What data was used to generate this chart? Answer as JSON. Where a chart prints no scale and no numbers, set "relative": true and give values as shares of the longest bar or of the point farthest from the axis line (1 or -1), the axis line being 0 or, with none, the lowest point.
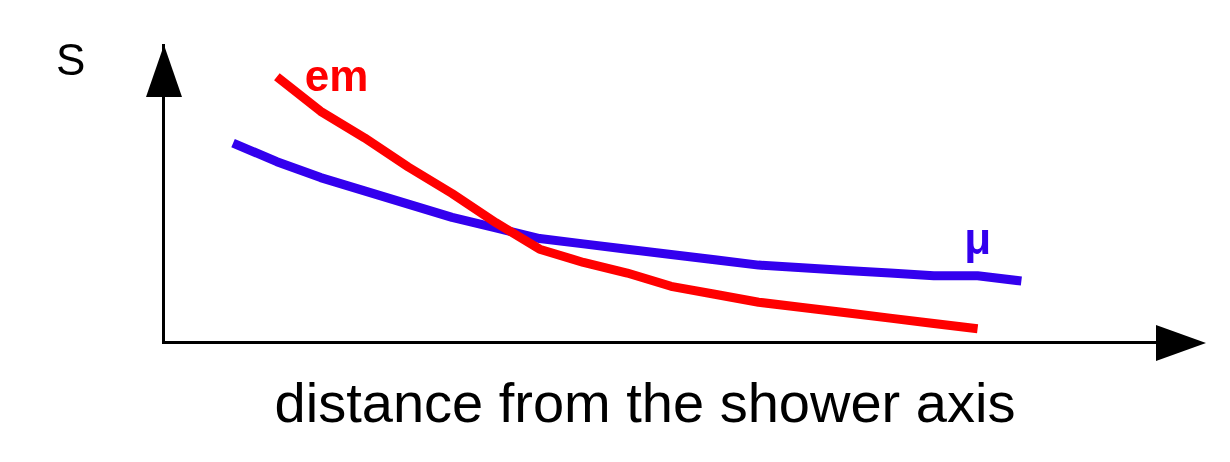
{
  "chart_data": {
    "type": "line",
    "relative": true,
    "xlabel": "distance from the shower axis",
    "ylabel": "S",
    "tick_labels": false,
    "grid": false,
    "marker": "none",
    "line_style": "solid",
    "categories": [
      null,
      null,
      null,
      null,
      null,
      null,
      null,
      null,
      null,
      null,
      null,
      null,
      null,
      null,
      null,
      null,
      null,
      null,
      null
    ],
    "series": [
      {
        "name": "em",
        "color": "#ff0000",
        "values": [
          null,
          1,
          0.87,
          0.77,
          0.66,
          0.56,
          0.45,
          0.35,
          0.3,
          0.26,
          0.21,
          0.18,
          0.15,
          0.13,
          0.11,
          0.09,
          0.07,
          0.05,
          null
        ]
      },
      {
        "name": "μ",
        "color": "#3300ee",
        "values": [
          0.75,
          0.68,
          0.62,
          0.57,
          0.52,
          0.47,
          0.43,
          0.39,
          0.37,
          0.35,
          0.33,
          0.31,
          0.29,
          0.28,
          0.27,
          0.26,
          0.25,
          0.25,
          0.23
        ]
      }
    ]
  }
}
